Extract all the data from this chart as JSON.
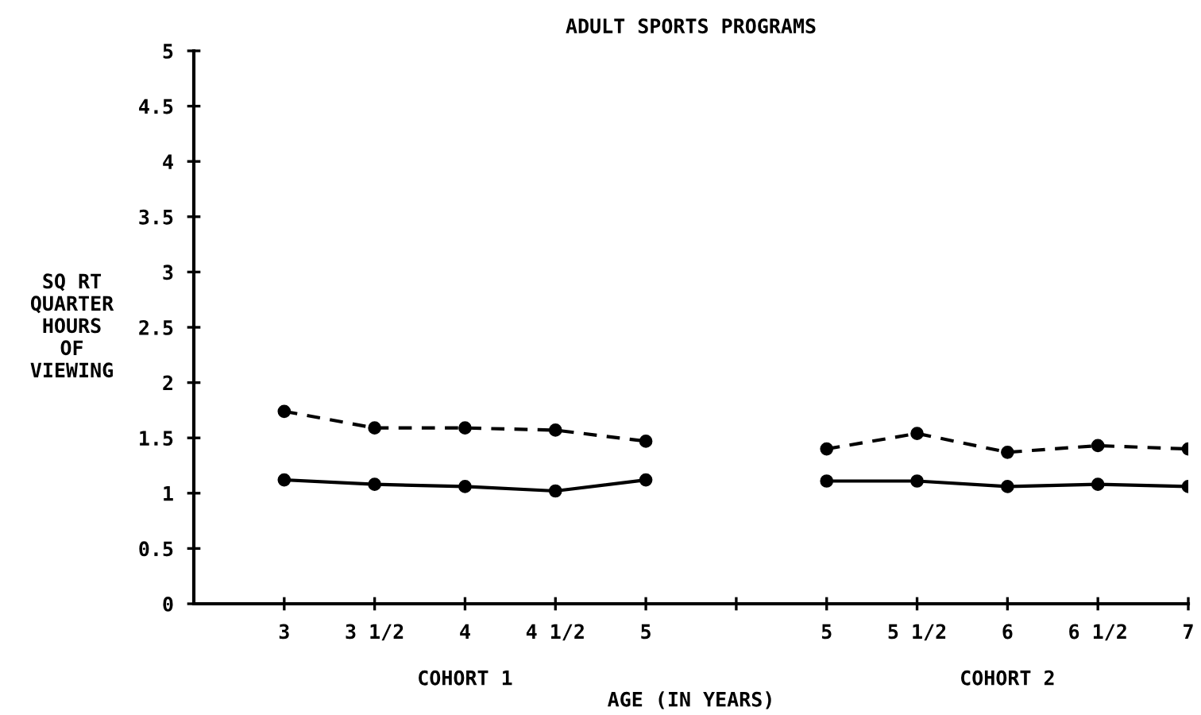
{
  "chart_data": {
    "type": "line",
    "title": "ADULT SPORTS PROGRAMS",
    "xlabel": "AGE (IN YEARS)",
    "ylabel": "SQ RT\nQUARTER\nHOURS\nOF\nVIEWING",
    "categories": [
      "3",
      "3 1/2",
      "4",
      "4 1/2",
      "5",
      null,
      "5",
      "5 1/2",
      "6",
      "6 1/2",
      "7"
    ],
    "annotations": [
      "COHORT 1",
      "COHORT 2"
    ],
    "series": [
      {
        "color": "#000000",
        "line_style": "solid",
        "values": [
          1.12,
          1.08,
          1.06,
          1.02,
          1.12,
          null,
          1.11,
          1.11,
          1.06,
          1.08,
          1.06
        ]
      },
      {
        "color": "#000000",
        "line_style": "dashed",
        "values": [
          1.74,
          1.59,
          1.59,
          1.57,
          1.47,
          null,
          1.4,
          1.54,
          1.37,
          1.43,
          1.4
        ]
      }
    ],
    "marker": "circle",
    "ylim": [
      0,
      5
    ],
    "yticks": [
      0,
      0.5,
      1,
      1.5,
      2,
      2.5,
      3,
      3.5,
      4,
      4.5,
      5
    ],
    "grid": false,
    "legend": false
  }
}
